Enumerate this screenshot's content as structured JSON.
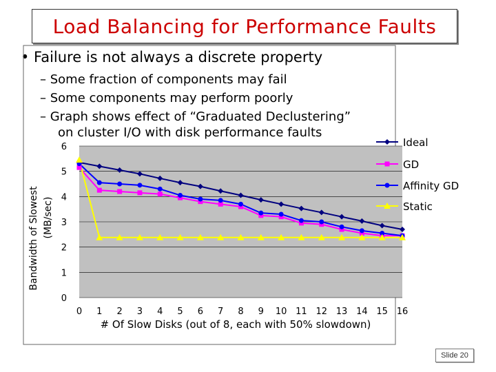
{
  "slide": {
    "title": "Load Balancing for Performance Faults",
    "bullet": "• Failure is not always a discrete property",
    "subbullets": [
      "– Some fraction of components may fail",
      "– Some components may perform poorly",
      "– Graph shows effect of “Graduated Declustering”",
      "on cluster I/O with disk performance faults"
    ],
    "slide_number": "Slide 20"
  },
  "chart_data": {
    "type": "line",
    "xlabel": "# Of Slow Disks (out of 8, each with 50% slowdown)",
    "ylabel_lines": [
      "Bandwidth of Slowest",
      "(MB/sec)"
    ],
    "x": [
      0,
      1,
      2,
      3,
      4,
      5,
      6,
      7,
      8,
      9,
      10,
      11,
      12,
      13,
      14,
      15,
      16
    ],
    "xlim": [
      0,
      16
    ],
    "ylim": [
      0,
      6
    ],
    "yticks": [
      0,
      1,
      2,
      3,
      4,
      5,
      6
    ],
    "legend_position": "right",
    "plot_background": "#c0c0c0",
    "series": [
      {
        "name": "Ideal",
        "color": "#00007f",
        "marker": "diamond",
        "values": [
          5.35,
          5.2,
          5.05,
          4.9,
          4.72,
          4.55,
          4.4,
          4.22,
          4.05,
          3.87,
          3.7,
          3.53,
          3.37,
          3.2,
          3.03,
          2.85,
          2.7
        ]
      },
      {
        "name": "GD",
        "color": "#ff00ff",
        "marker": "square",
        "values": [
          5.15,
          4.25,
          4.2,
          4.15,
          4.1,
          3.95,
          3.8,
          3.7,
          3.6,
          3.25,
          3.2,
          2.95,
          2.9,
          2.7,
          2.55,
          2.45,
          2.45
        ]
      },
      {
        "name": "Affinity GD",
        "color": "#0000ff",
        "marker": "circle",
        "values": [
          5.3,
          4.55,
          4.5,
          4.45,
          4.3,
          4.05,
          3.9,
          3.85,
          3.7,
          3.35,
          3.3,
          3.05,
          3.0,
          2.8,
          2.65,
          2.55,
          2.45
        ]
      },
      {
        "name": "Static",
        "color": "#ffff00",
        "marker": "triangle",
        "values": [
          5.45,
          2.38,
          2.38,
          2.38,
          2.38,
          2.38,
          2.38,
          2.38,
          2.38,
          2.38,
          2.38,
          2.38,
          2.38,
          2.38,
          2.38,
          2.38,
          2.38
        ]
      }
    ]
  }
}
